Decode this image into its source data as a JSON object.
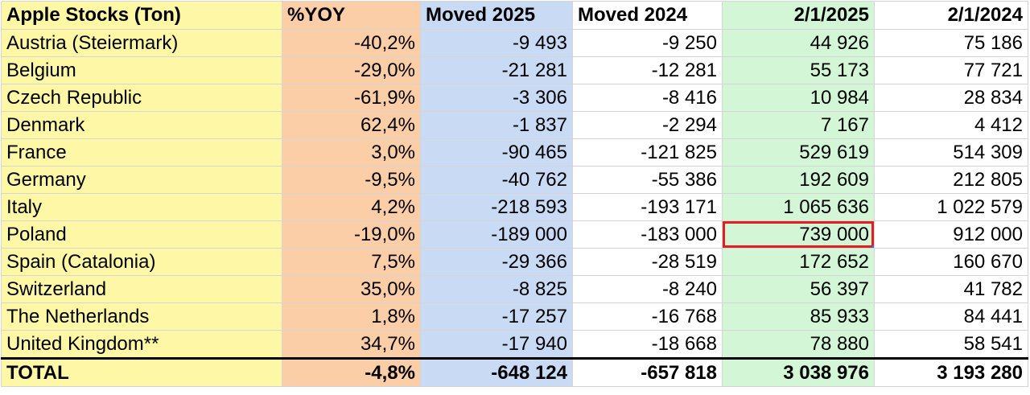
{
  "table": {
    "headers": [
      "Apple Stocks (Ton)",
      "%YOY",
      "Moved 2025",
      "Moved 2024",
      "2/1/2025",
      "2/1/2024"
    ],
    "rows": [
      [
        "Austria (Steiermark)",
        "-40,2%",
        "-9 493",
        "-9 250",
        "44 926",
        "75 186"
      ],
      [
        "Belgium",
        "-29,0%",
        "-21 281",
        "-12 281",
        "55 173",
        "77 721"
      ],
      [
        "Czech Republic",
        "-61,9%",
        "-3 306",
        "-8 416",
        "10 984",
        "28 834"
      ],
      [
        "Denmark",
        "62,4%",
        "-1 837",
        "-2 294",
        "7 167",
        "4 412"
      ],
      [
        "France",
        "3,0%",
        "-90 465",
        "-121 825",
        "529 619",
        "514 309"
      ],
      [
        "Germany",
        "-9,5%",
        "-40 762",
        "-55 386",
        "192 609",
        "212 805"
      ],
      [
        "Italy",
        "4,2%",
        "-218 593",
        "-193 171",
        "1 065 636",
        "1 022 579"
      ],
      [
        "Poland",
        "-19,0%",
        "-189 000",
        "-183 000",
        "739 000",
        "912 000"
      ],
      [
        "Spain (Catalonia)",
        "7,5%",
        "-29 366",
        "-28 519",
        "172 652",
        "160 670"
      ],
      [
        "Switzerland",
        "35,0%",
        "-8 825",
        "-8 240",
        "56 397",
        "41 782"
      ],
      [
        "The Netherlands",
        "1,8%",
        "-17 257",
        "-16 768",
        "85 933",
        "84 441"
      ],
      [
        "United Kingdom**",
        "34,7%",
        "-17 940",
        "-18 668",
        "78 880",
        "58 541"
      ]
    ],
    "total": [
      "TOTAL",
      "-4,8%",
      "-648 124",
      "-657 818",
      "3 038 976",
      "3 193 280"
    ],
    "selected_cell": {
      "row": 7,
      "col": 4
    },
    "column_colors": [
      "#fdf7a6",
      "#fbcea8",
      "#c9daf5",
      "#ffffff",
      "#d3f6d6",
      "#ffffff"
    ],
    "selection_border_color": "#e02020"
  }
}
